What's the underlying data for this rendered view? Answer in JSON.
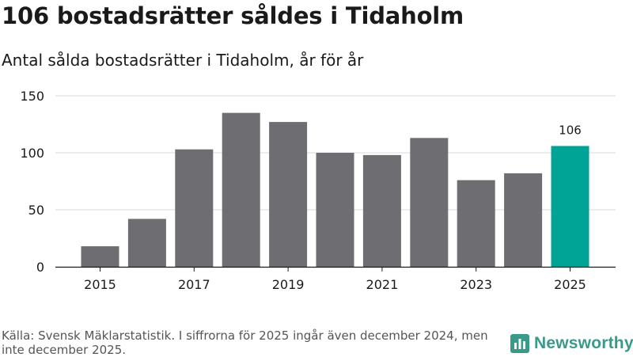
{
  "title": "106 bostadsrätter såldes i Tidaholm",
  "subtitle": "Antal sålda bostadsrätter i Tidaholm, år för år",
  "source": "Källa: Svensk Mäklarstatistik. I siffrorna för 2025 ingår även december 2024, men inte december 2025.",
  "brand": "Newsworthy",
  "colors": {
    "bar": "#6e6d72",
    "highlight": "#00a497",
    "grid": "#d9d9d9",
    "axis": "#1a1a1a",
    "brand": "#3a9a8a"
  },
  "chart_data": {
    "type": "bar",
    "title": "Antal sålda bostadsrätter i Tidaholm, år för år",
    "xlabel": "",
    "ylabel": "",
    "categories": [
      "2015",
      "2016",
      "2017",
      "2018",
      "2019",
      "2020",
      "2021",
      "2022",
      "2023",
      "2024",
      "2025"
    ],
    "values": [
      18,
      42,
      103,
      135,
      127,
      100,
      98,
      113,
      76,
      82,
      106
    ],
    "highlight_index": 10,
    "data_labels": [
      {
        "index": 10,
        "text": "106"
      }
    ],
    "ylim": [
      0,
      150
    ],
    "yticks": [
      0,
      50,
      100,
      150
    ],
    "xticks": [
      "2015",
      "2017",
      "2019",
      "2021",
      "2023",
      "2025"
    ],
    "grid": true
  }
}
